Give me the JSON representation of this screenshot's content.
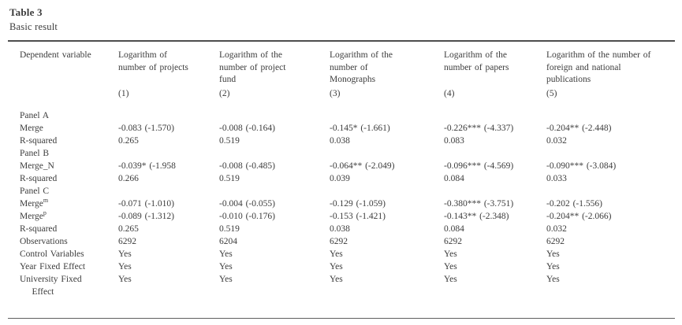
{
  "caption": {
    "title": "Table 3",
    "subtitle": "Basic result"
  },
  "table": {
    "corner_header": "Dependent variable",
    "columns": [
      {
        "label": "Logarithm of\nnumber of projects",
        "number": "(1)"
      },
      {
        "label": "Logarithm of the\nnumber of project\nfund",
        "number": "(2)"
      },
      {
        "label": "Logarithm of the\nnumber of\nMonographs",
        "number": "(3)"
      },
      {
        "label": "Logarithm of the\nnumber of papers",
        "number": "(4)"
      },
      {
        "label": "Logarithm of the number of\nforeign and national\npublications",
        "number": "(5)"
      }
    ],
    "rows": [
      {
        "label": "Panel A"
      },
      {
        "label": "Merge",
        "cells": [
          "-0.083 (-1.570)",
          "-0.008 (-0.164)",
          "-0.145* (-1.661)",
          "-0.226*** (-4.337)",
          "-0.204** (-2.448)"
        ]
      },
      {
        "label": "R-squared",
        "cells": [
          "0.265",
          "0.519",
          "0.038",
          "0.083",
          "0.032"
        ]
      },
      {
        "label": "Panel B"
      },
      {
        "label": "Merge_N",
        "cells": [
          "-0.039* (-1.958",
          "-0.008 (-0.485)",
          "-0.064** (-2.049)",
          "-0.096*** (-4.569)",
          "-0.090*** (-3.084)"
        ]
      },
      {
        "label": "R-squared",
        "cells": [
          "0.266",
          "0.519",
          "0.039",
          "0.084",
          "0.033"
        ]
      },
      {
        "label": "Panel C"
      },
      {
        "label": "Merge",
        "sup": "m",
        "cells": [
          "-0.071 (-1.010)",
          "-0.004 (-0.055)",
          "-0.129 (-1.059)",
          "-0.380*** (-3.751)",
          "-0.202 (-1.556)"
        ]
      },
      {
        "label": "Merge",
        "sup": "p",
        "cells": [
          "-0.089 (-1.312)",
          "-0.010 (-0.176)",
          "-0.153 (-1.421)",
          "-0.143** (-2.348)",
          "-0.204** (-2.066)"
        ]
      },
      {
        "label": "R-squared",
        "cells": [
          "0.265",
          "0.519",
          "0.038",
          "0.084",
          "0.032"
        ]
      },
      {
        "label": "Observations",
        "cells": [
          "6292",
          "6204",
          "6292",
          "6292",
          "6292"
        ]
      },
      {
        "label": "Control Variables",
        "cells": [
          "Yes",
          "Yes",
          "Yes",
          "Yes",
          "Yes"
        ]
      },
      {
        "label": "Year Fixed Effect",
        "cells": [
          "Yes",
          "Yes",
          "Yes",
          "Yes",
          "Yes"
        ]
      },
      {
        "label": "University Fixed\n    Effect",
        "cells": [
          "Yes",
          "Yes",
          "Yes",
          "Yes",
          "Yes"
        ]
      }
    ]
  }
}
